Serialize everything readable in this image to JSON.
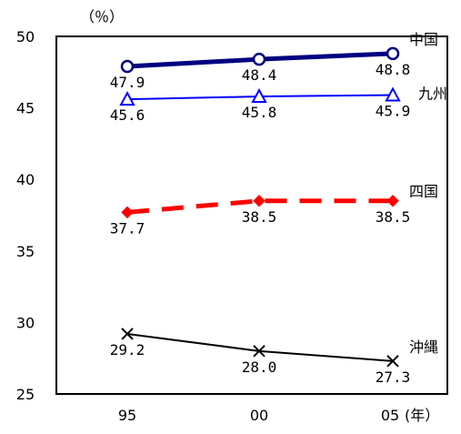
{
  "chart_data": {
    "type": "line",
    "title": "",
    "xlabel": "",
    "ylabel": "",
    "y_unit": "（％）",
    "x_unit": "(年）",
    "x": [
      "95",
      "00",
      "05"
    ],
    "ylim": [
      25,
      50
    ],
    "yticks": [
      "50",
      "45",
      "40",
      "35",
      "30",
      "25"
    ],
    "grid": false,
    "series": [
      {
        "name": "中国",
        "values": [
          47.9,
          48.4,
          48.8
        ],
        "labels": [
          "47.9",
          "48.4",
          "48.8"
        ],
        "color": "#000080",
        "line_style": "solid-thick",
        "marker": "circle-open"
      },
      {
        "name": "九州",
        "values": [
          45.6,
          45.8,
          45.9
        ],
        "labels": [
          "45.6",
          "45.8",
          "45.9"
        ],
        "color": "#0000ff",
        "line_style": "solid-thin",
        "marker": "triangle-open"
      },
      {
        "name": "四国",
        "values": [
          37.7,
          38.5,
          38.5
        ],
        "labels": [
          "37.7",
          "38.5",
          "38.5"
        ],
        "color": "#ff0000",
        "line_style": "dashed",
        "marker": "diamond-filled"
      },
      {
        "name": "沖縄",
        "values": [
          29.2,
          28.0,
          27.3
        ],
        "labels": [
          "29.2",
          "28.0",
          "27.3"
        ],
        "color": "#000000",
        "line_style": "solid",
        "marker": "x"
      }
    ]
  }
}
